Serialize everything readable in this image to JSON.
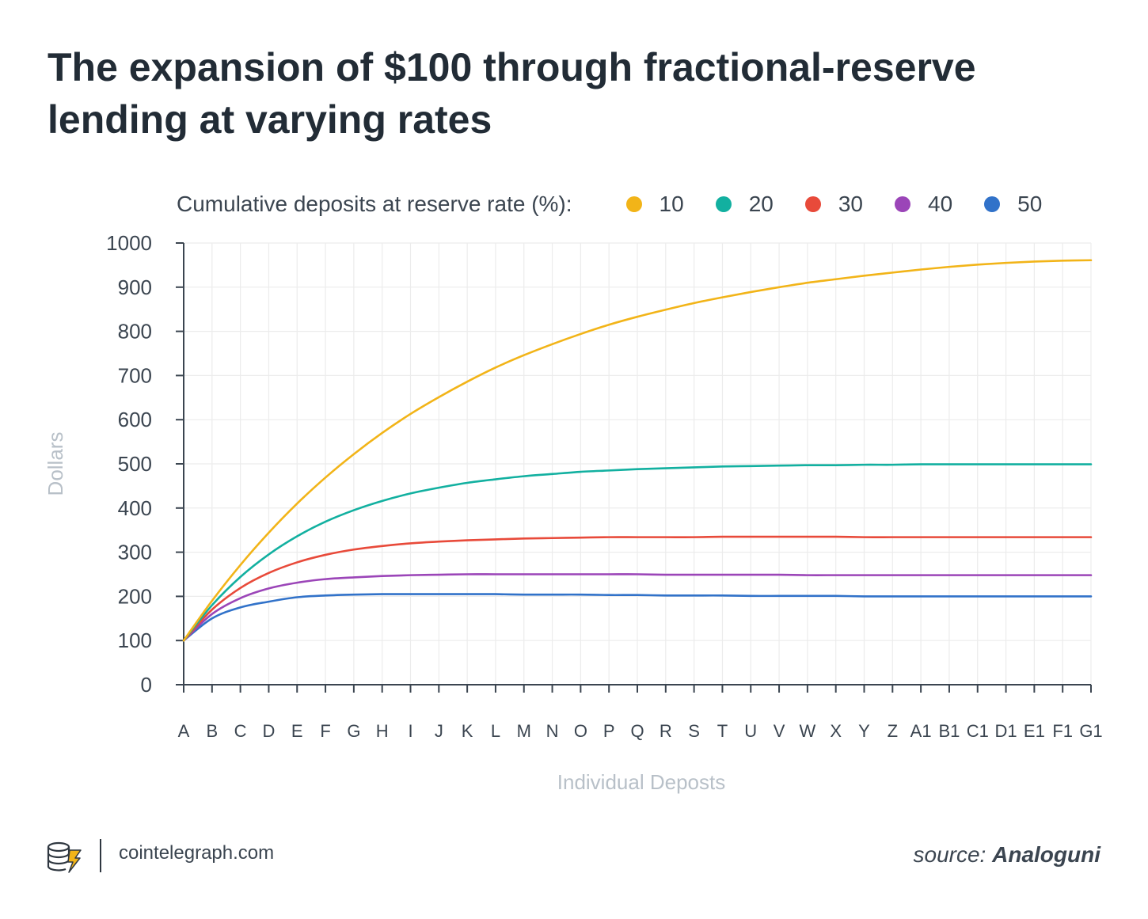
{
  "chart_data": {
    "type": "line",
    "title": "The expansion of $100 through fractional-reserve lending at varying rates",
    "legend_title": "Cumulative deposits at reserve rate (%):",
    "xlabel": "Individual Deposts",
    "ylabel": "Dollars",
    "ylim": [
      0,
      1000
    ],
    "yticks": [
      "0",
      "100",
      "200",
      "300",
      "400",
      "500",
      "600",
      "700",
      "800",
      "900",
      "1000"
    ],
    "categories": [
      "A",
      "B",
      "C",
      "D",
      "E",
      "F",
      "G",
      "H",
      "I",
      "J",
      "K",
      "L",
      "M",
      "N",
      "O",
      "P",
      "Q",
      "R",
      "S",
      "T",
      "U",
      "V",
      "W",
      "X",
      "Y",
      "Z",
      "A1",
      "B1",
      "C1",
      "D1",
      "E1",
      "F1",
      "G1"
    ],
    "grid": true,
    "legend_position": "top",
    "series": [
      {
        "name": "10",
        "color": "#f2b418",
        "values": [
          100,
          190,
          271,
          344,
          410,
          469,
          522,
          570,
          613,
          651,
          686,
          718,
          746,
          771,
          794,
          815,
          833,
          849,
          864,
          877,
          889,
          900,
          910,
          918,
          926,
          933,
          940,
          946,
          951,
          955,
          958,
          960,
          961
        ]
      },
      {
        "name": "20",
        "color": "#12b0a0",
        "values": [
          100,
          180,
          244,
          295,
          336,
          369,
          395,
          416,
          433,
          446,
          457,
          465,
          472,
          477,
          482,
          485,
          488,
          490,
          492,
          494,
          495,
          496,
          497,
          497,
          498,
          498,
          499,
          499,
          499,
          499,
          499,
          499,
          499
        ]
      },
      {
        "name": "30",
        "color": "#e84a3a",
        "values": [
          100,
          170,
          219,
          253,
          277,
          294,
          306,
          314,
          320,
          324,
          327,
          329,
          331,
          332,
          333,
          334,
          334,
          334,
          334,
          335,
          335,
          335,
          335,
          335,
          334,
          334,
          334,
          334,
          334,
          334,
          334,
          334,
          334
        ]
      },
      {
        "name": "40",
        "color": "#9b45b8",
        "values": [
          100,
          160,
          196,
          218,
          231,
          239,
          243,
          246,
          248,
          249,
          250,
          250,
          250,
          250,
          250,
          250,
          250,
          249,
          249,
          249,
          249,
          249,
          248,
          248,
          248,
          248,
          248,
          248,
          248,
          248,
          248,
          248,
          248
        ]
      },
      {
        "name": "50",
        "color": "#3172c9",
        "values": [
          100,
          150,
          175,
          188,
          198,
          202,
          204,
          205,
          205,
          205,
          205,
          205,
          204,
          204,
          204,
          203,
          203,
          202,
          202,
          202,
          201,
          201,
          201,
          201,
          200,
          200,
          200,
          200,
          200,
          200,
          200,
          200,
          200
        ]
      }
    ]
  },
  "footer": {
    "logo_icon": "cointelegraph-coins-icon",
    "site": "cointelegraph.com",
    "source_prefix": "source:",
    "source_name": "Analoguni"
  }
}
